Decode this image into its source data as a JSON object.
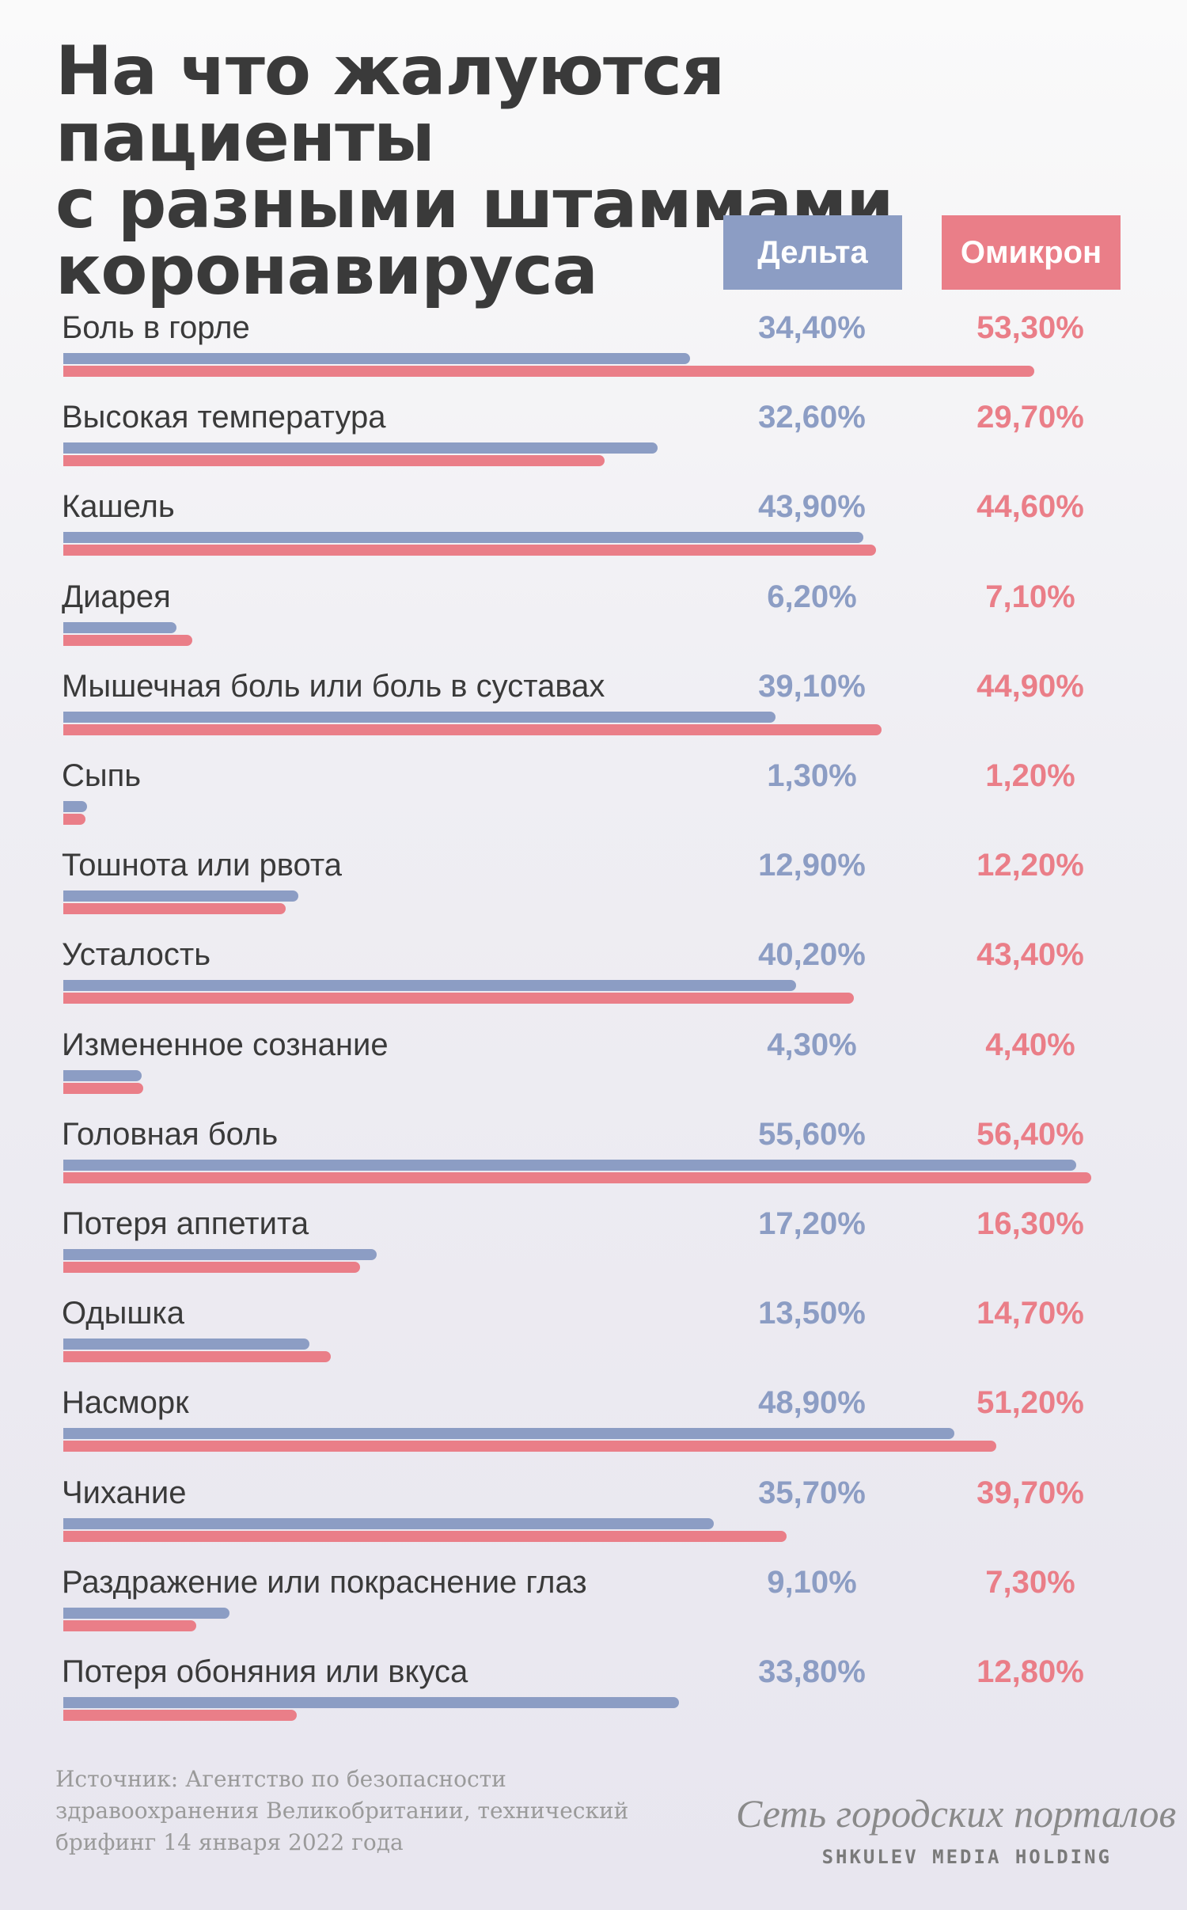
{
  "title_lines": [
    "На что жалуются пациенты",
    "с разными штаммами",
    "коронавируса"
  ],
  "colors": {
    "delta": "#8c9dc4",
    "omicron": "#ea7e88",
    "text": "#3a3a3a"
  },
  "chart_data": {
    "type": "bar",
    "orientation": "horizontal",
    "title": "На что жалуются пациенты с разными штаммами коронавируса",
    "value_unit": "%",
    "categories": [
      "Боль в горле",
      "Высокая температура",
      "Кашель",
      "Диарея",
      "Мышечная боль или боль в суставах",
      "Сыпь",
      "Тошнота или рвота",
      "Усталость",
      "Измененное сознание",
      "Головная боль",
      "Потеря аппетита",
      "Одышка",
      "Насморк",
      "Чихание",
      "Раздражение или покраснение глаз",
      "Потеря обоняния или вкуса"
    ],
    "series": [
      {
        "name": "Дельта",
        "color": "#8c9dc4",
        "values": [
          34.4,
          32.6,
          43.9,
          6.2,
          39.1,
          1.3,
          12.9,
          40.2,
          4.3,
          55.6,
          17.2,
          13.5,
          48.9,
          35.7,
          9.1,
          33.8
        ],
        "labels": [
          "34,40%",
          "32,60%",
          "43,90%",
          "6,20%",
          "39,10%",
          "1,30%",
          "12,90%",
          "40,20%",
          "4,30%",
          "55,60%",
          "17,20%",
          "13,50%",
          "48,90%",
          "35,70%",
          "9,10%",
          "33,80%"
        ]
      },
      {
        "name": "Омикрон",
        "color": "#ea7e88",
        "values": [
          53.3,
          29.7,
          44.6,
          7.1,
          44.9,
          1.2,
          12.2,
          43.4,
          4.4,
          56.4,
          16.3,
          14.7,
          51.2,
          39.7,
          7.3,
          12.8
        ],
        "labels": [
          "53,30%",
          "29,70%",
          "44,60%",
          "7,10%",
          "44,90%",
          "1,20%",
          "12,20%",
          "43,40%",
          "4,40%",
          "56,40%",
          "16,30%",
          "14,70%",
          "51,20%",
          "39,70%",
          "7,30%",
          "12,80%"
        ]
      }
    ],
    "legend_position": "top-right",
    "grid": false
  },
  "source_lines": [
    "Источник: Агентство по безопасности",
    "здравоохранения Великобритании, технический",
    "брифинг 14 января 2022 года"
  ],
  "brand": {
    "name": "Сеть городских порталов",
    "sub": "SHKULEV MEDIA HOLDING"
  }
}
